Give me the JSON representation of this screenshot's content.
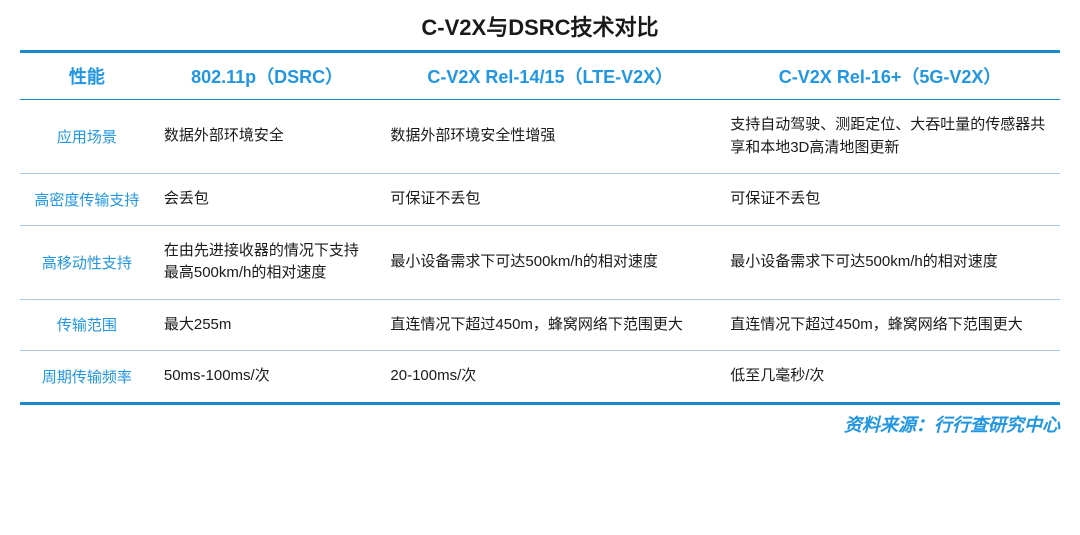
{
  "title": "C-V2X与DSRC技术对比",
  "source": "资料来源：行行查研究中心",
  "colors": {
    "accent": "#2196e3",
    "border_heavy": "#1a8acb",
    "border_light": "#a8cae8",
    "text": "#1a1a1a",
    "background": "#ffffff"
  },
  "table": {
    "headers": [
      "性能",
      "802.11p（DSRC）",
      "C-V2X Rel-14/15（LTE-V2X）",
      "C-V2X Rel-16+（5G-V2X）"
    ],
    "rows": [
      {
        "label": "应用场景",
        "cells": [
          "数据外部环境安全",
          "数据外部环境安全性增强",
          "支持自动驾驶、测距定位、大吞吐量的传感器共享和本地3D高清地图更新"
        ]
      },
      {
        "label": "高密度传输支持",
        "cells": [
          "会丢包",
          "可保证不丢包",
          "可保证不丢包"
        ]
      },
      {
        "label": "高移动性支持",
        "cells": [
          "在由先进接收器的情况下支持最高500km/h的相对速度",
          "最小设备需求下可达500km/h的相对速度",
          "最小设备需求下可达500km/h的相对速度"
        ]
      },
      {
        "label": "传输范围",
        "cells": [
          "最大255m",
          "直连情况下超过450m，蜂窝网络下范围更大",
          "直连情况下超过450m，蜂窝网络下范围更大"
        ]
      },
      {
        "label": "周期传输频率",
        "cells": [
          "50ms-100ms/次",
          "20-100ms/次",
          "低至几毫秒/次"
        ]
      }
    ]
  }
}
